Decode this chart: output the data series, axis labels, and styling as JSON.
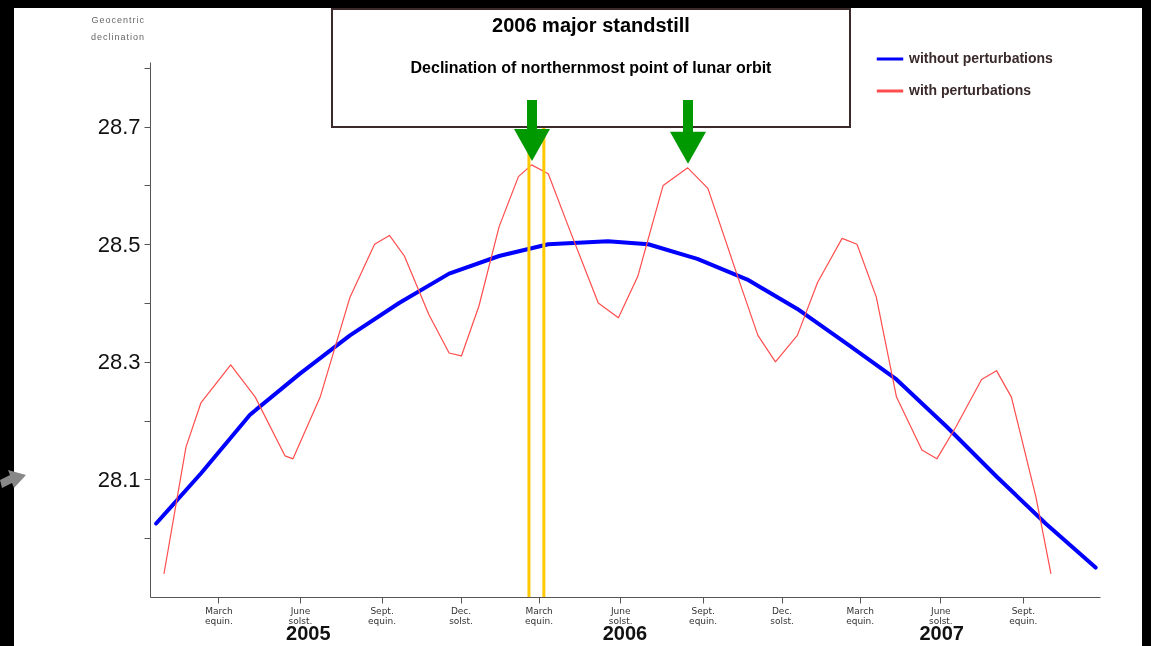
{
  "chart_data": {
    "type": "line",
    "title": "2006 major standstill",
    "subtitle": "Declination of northernmost point of lunar orbit",
    "ylabel": "Geocentric declination",
    "xlim": [
      "2005-01-01",
      "2007-12-20"
    ],
    "xticks": [
      {
        "value": "2005-03-20",
        "label": "March\nequin."
      },
      {
        "value": "2005-06-21",
        "label": "June\nsolst."
      },
      {
        "value": "2005-09-22",
        "label": "Sept.\nequin."
      },
      {
        "value": "2005-12-21",
        "label": "Dec.\nsolst."
      },
      {
        "value": "2006-03-20",
        "label": "March\nequin."
      },
      {
        "value": "2006-06-21",
        "label": "June\nsolst."
      },
      {
        "value": "2006-09-23",
        "label": "Sept.\nequin."
      },
      {
        "value": "2006-12-22",
        "label": "Dec.\nsolst."
      },
      {
        "value": "2007-03-21",
        "label": "March\nequin."
      },
      {
        "value": "2007-06-21",
        "label": "June\nsolst."
      },
      {
        "value": "2007-09-23",
        "label": "Sept.\nequin."
      }
    ],
    "ylim": [
      27.9,
      28.81
    ],
    "yticks": [
      {
        "value": 28.0,
        "label": null
      },
      28.1,
      {
        "value": 28.2,
        "label": null
      },
      28.3,
      {
        "value": 28.4,
        "label": null
      },
      28.5,
      {
        "value": 28.6,
        "label": null
      },
      28.7,
      {
        "value": 28.8,
        "label": null
      }
    ],
    "grid": false,
    "legend": "top right",
    "line_style": "solid",
    "marker": "none",
    "series": [
      {
        "name": "without perturbations",
        "color": "#0000ff",
        "x": [
          "2005-01-08",
          "2005-02-28",
          "2005-04-25",
          "2005-06-21",
          "2005-08-17",
          "2005-10-12",
          "2005-12-08",
          "2006-02-03",
          "2006-03-31",
          "2006-06-07",
          "2006-07-23",
          "2006-09-17",
          "2006-11-13",
          "2007-01-09",
          "2007-03-07",
          "2007-05-02",
          "2007-06-28",
          "2007-08-24",
          "2007-10-19",
          "2007-12-15"
        ],
        "values": [
          28.025,
          28.11,
          28.21,
          28.28,
          28.345,
          28.4,
          28.45,
          28.48,
          28.5,
          28.505,
          28.5,
          28.475,
          28.44,
          28.39,
          28.33,
          28.27,
          28.19,
          28.105,
          28.025,
          27.95
        ]
      },
      {
        "name": "with perturbations",
        "color": "#ff4d4d",
        "x": [
          "2005-01-17",
          "2005-02-11",
          "2005-02-28",
          "2005-04-03",
          "2005-05-01",
          "2005-06-04",
          "2005-06-13",
          "2005-07-14",
          "2005-08-17",
          "2005-09-14",
          "2005-10-01",
          "2005-10-18",
          "2005-11-15",
          "2005-12-08",
          "2005-12-22",
          "2006-01-11",
          "2006-02-03",
          "2006-02-25",
          "2006-03-12",
          "2006-03-31",
          "2006-04-23",
          "2006-05-27",
          "2006-06-19",
          "2006-07-11",
          "2006-08-09",
          "2006-09-06",
          "2006-09-29",
          "2006-11-02",
          "2006-11-25",
          "2006-12-15",
          "2007-01-09",
          "2007-02-01",
          "2007-03-01",
          "2007-03-18",
          "2007-04-09",
          "2007-05-02",
          "2007-05-31",
          "2007-06-17",
          "2007-07-09",
          "2007-08-07",
          "2007-08-24",
          "2007-09-10",
          "2007-10-08",
          "2007-10-25"
        ],
        "values": [
          27.94,
          28.155,
          28.23,
          28.295,
          28.24,
          28.14,
          28.135,
          28.24,
          28.41,
          28.5,
          28.515,
          28.48,
          28.38,
          28.315,
          28.31,
          28.395,
          28.53,
          28.615,
          28.635,
          28.62,
          28.53,
          28.4,
          28.375,
          28.445,
          28.6,
          28.63,
          28.595,
          28.445,
          28.345,
          28.3,
          28.345,
          28.435,
          28.51,
          28.5,
          28.41,
          28.24,
          28.15,
          28.135,
          28.19,
          28.27,
          28.285,
          28.24,
          28.07,
          27.94
        ]
      }
    ],
    "ref_lines": [
      {
        "axis": "x",
        "value": "2006-03-09",
        "color": "#ffc800"
      },
      {
        "axis": "x",
        "value": "2006-03-26",
        "color": "#ffc800"
      }
    ],
    "annotations": [
      "2005",
      "2006",
      "2007"
    ]
  }
}
